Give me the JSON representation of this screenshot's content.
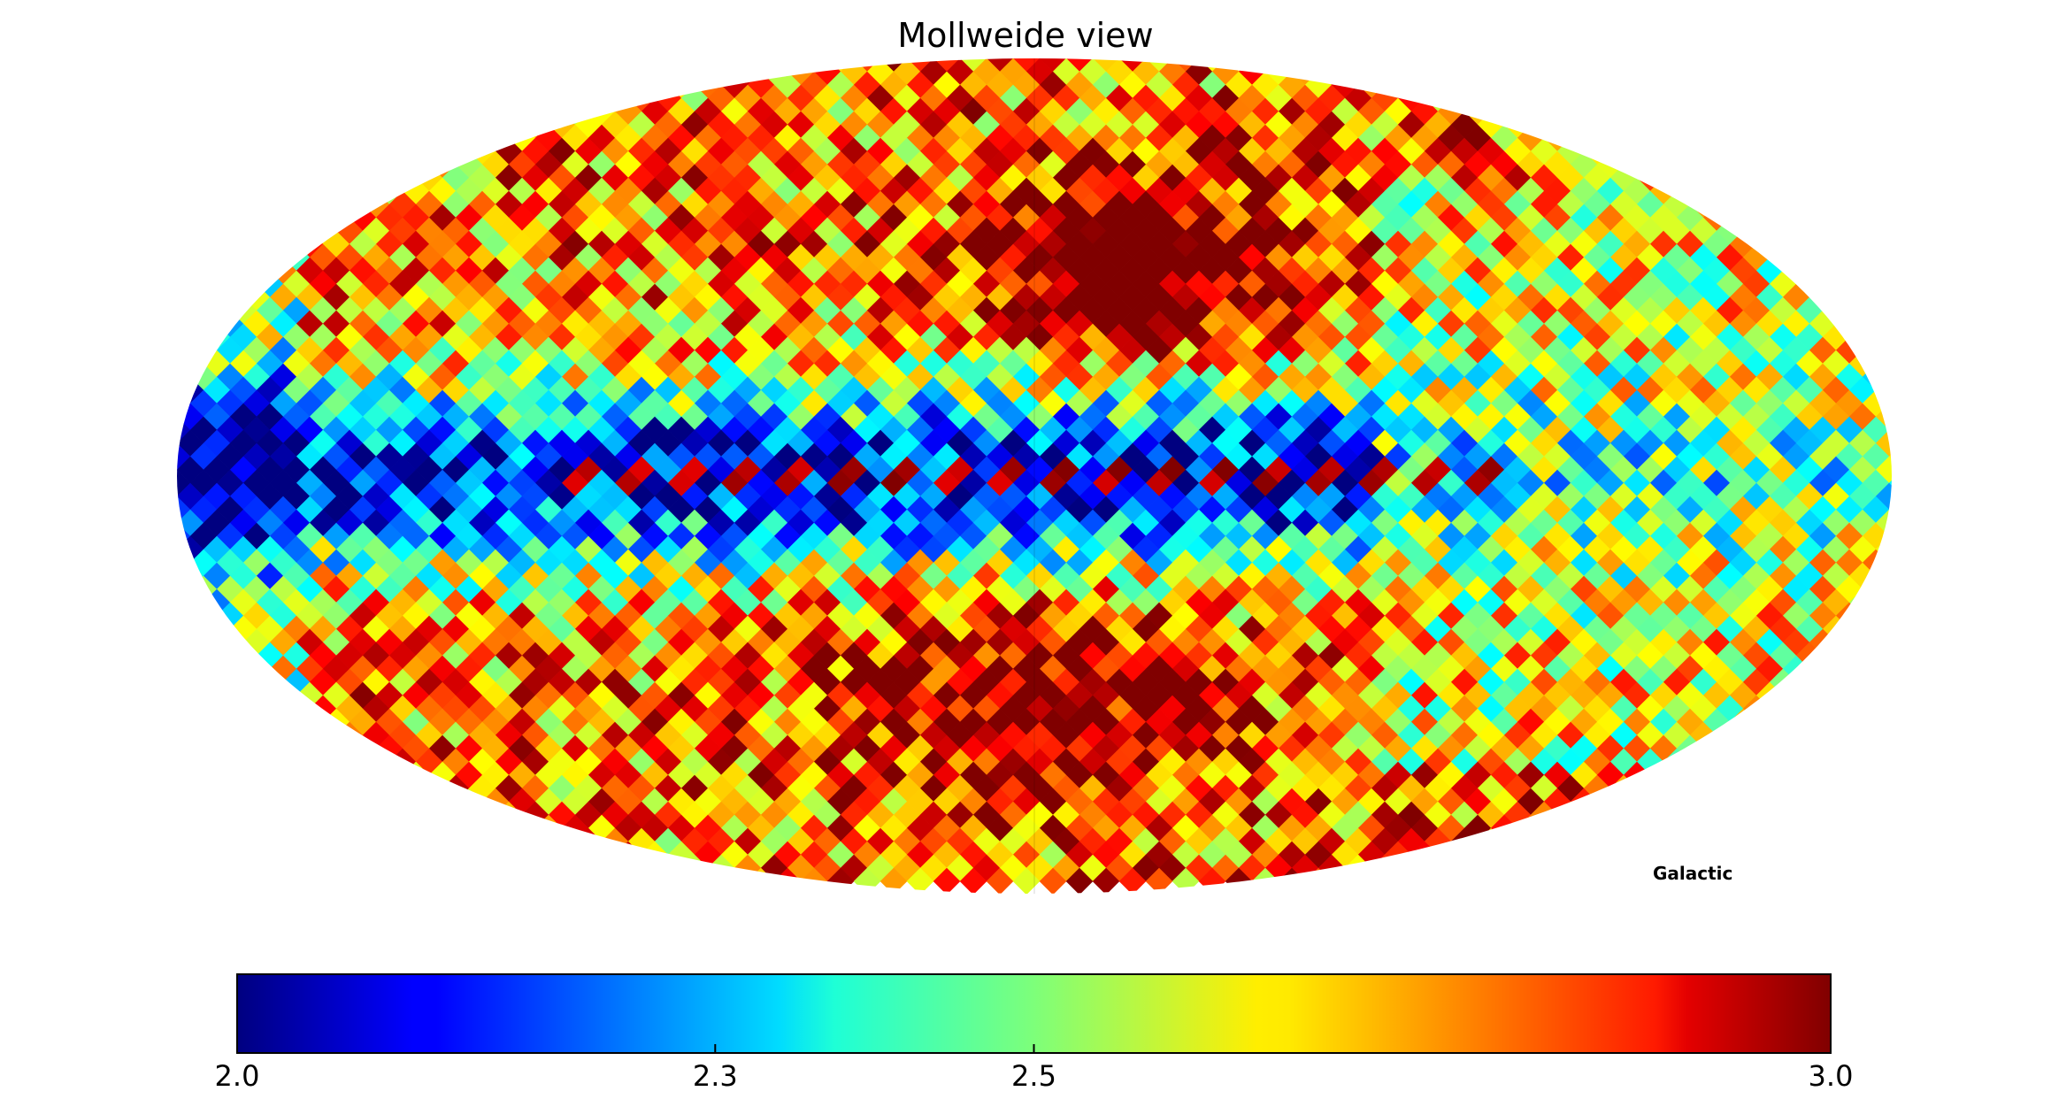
{
  "title": "Mollweide view",
  "coord_label": "Galactic",
  "chart_data": {
    "type": "heatmap",
    "projection": "mollweide",
    "title": "Mollweide view",
    "coordinate_system": "Galactic",
    "colormap": "jet",
    "colorbar": {
      "min": 2.0,
      "max": 3.0,
      "ticks": [
        2.0,
        2.3,
        2.5,
        3.0
      ],
      "tick_labels": [
        "2.0",
        "2.3",
        "2.5",
        "3.0"
      ],
      "orientation": "horizontal",
      "placement": "bottom"
    },
    "pixel_map_description_values": {
      "galactic_plane_band": 2.05,
      "galactic_plane_centerline_spots": 2.95,
      "north_center_lobe": 2.9,
      "south_center_lobe": 2.85,
      "east_region": 2.55,
      "high_latitude_edges": 2.8
    }
  }
}
